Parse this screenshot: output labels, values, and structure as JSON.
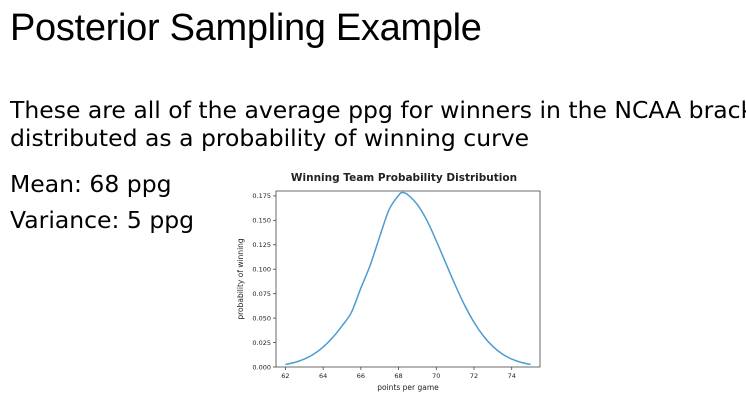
{
  "slide": {
    "title": "Posterior Sampling Example",
    "line1": "These are all of the average ppg for winners in the NCAA bracket",
    "line2": "distributed as a probability of winning curve",
    "mean": "Mean: 68 ppg",
    "variance": "Variance: 5 ppg"
  },
  "chart_data": {
    "type": "line",
    "title": "Winning Team Probability Distribution",
    "xlabel": "points per game",
    "ylabel": "probability of winning",
    "xlim": [
      61.5,
      75.5
    ],
    "ylim": [
      0,
      0.18
    ],
    "xticks": [
      62,
      64,
      66,
      68,
      70,
      72,
      74
    ],
    "yticks": [
      "0.000",
      "0.025",
      "0.050",
      "0.075",
      "0.100",
      "0.125",
      "0.150",
      "0.175"
    ],
    "grid": false,
    "series": [
      {
        "color": "#4c9bd2",
        "x": [
          62.0,
          62.5,
          63.0,
          63.5,
          64.0,
          64.5,
          65.0,
          65.5,
          66.0,
          66.5,
          67.0,
          67.5,
          68.0,
          68.2,
          68.5,
          69.0,
          69.5,
          70.0,
          70.5,
          71.0,
          71.5,
          72.0,
          72.5,
          73.0,
          73.5,
          74.0,
          74.5,
          75.0
        ],
        "y": [
          0.0026,
          0.0047,
          0.0081,
          0.0132,
          0.0204,
          0.03,
          0.042,
          0.0559,
          0.0807,
          0.1043,
          0.1334,
          0.161,
          0.1755,
          0.1784,
          0.176,
          0.166,
          0.15,
          0.129,
          0.1064,
          0.084,
          0.0633,
          0.0458,
          0.0317,
          0.021,
          0.0133,
          0.0081,
          0.0047,
          0.0026
        ]
      }
    ]
  }
}
